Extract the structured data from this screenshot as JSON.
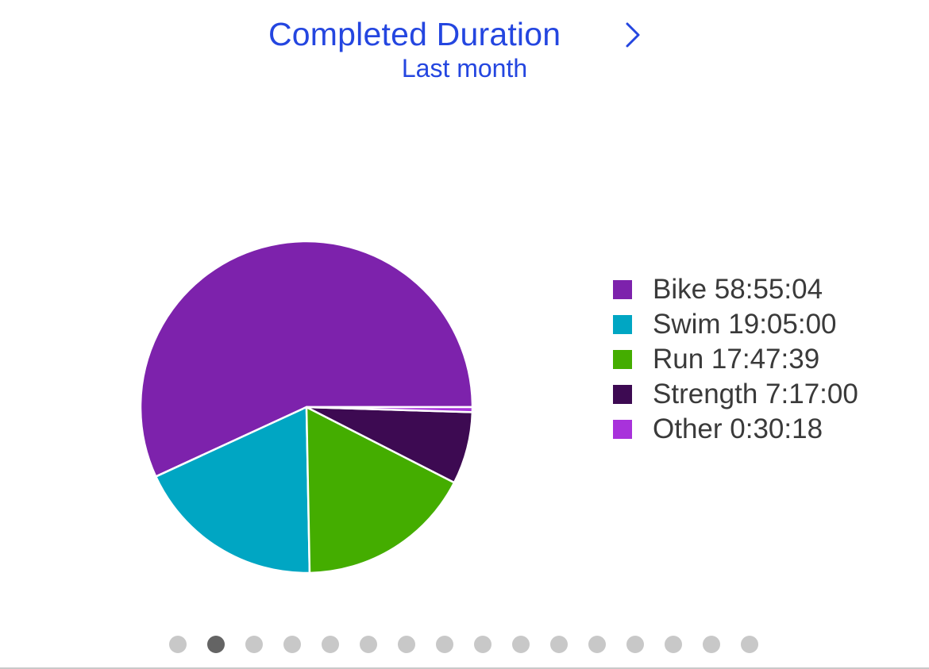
{
  "header": {
    "title": "Completed Duration",
    "subtitle": "Last month",
    "chevron_icon": "chevron-right-icon",
    "accent_color": "#2446e0"
  },
  "chart_data": {
    "type": "pie",
    "title": "Completed Duration",
    "subtitle": "Last month",
    "legend_position": "right",
    "slices": [
      {
        "name": "Bike",
        "label": "Bike 58:55:04",
        "value_seconds": 212104,
        "color": "#7d22ac"
      },
      {
        "name": "Swim",
        "label": "Swim 19:05:00",
        "value_seconds": 68700,
        "color": "#00a6c3"
      },
      {
        "name": "Run",
        "label": "Run 17:47:39",
        "value_seconds": 64059,
        "color": "#44ad00"
      },
      {
        "name": "Strength",
        "label": "Strength 7:17:00",
        "value_seconds": 26220,
        "color": "#3d0a52"
      },
      {
        "name": "Other",
        "label": "Other 0:30:18",
        "value_seconds": 1818,
        "color": "#a832db"
      }
    ]
  },
  "pager": {
    "count": 16,
    "active_index": 1,
    "active_color": "#646464",
    "inactive_color": "#c8c8c8"
  }
}
